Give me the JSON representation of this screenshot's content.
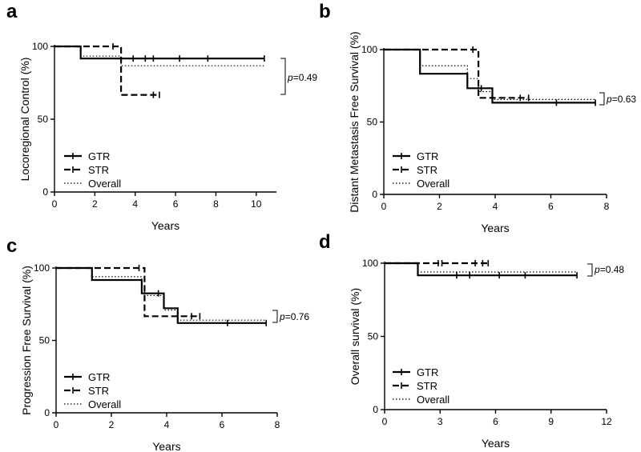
{
  "chart_data": [
    {
      "type": "line",
      "subtype": "kaplan-meier",
      "panel": "a",
      "title": "",
      "xlabel": "Years",
      "ylabel": "Locoregional Control (%)",
      "xlim": [
        0,
        11
      ],
      "ylim": [
        0,
        100
      ],
      "xticks": [
        0,
        2,
        4,
        6,
        8,
        10
      ],
      "yticks": [
        0,
        50,
        100
      ],
      "legend_position": "bottom-left",
      "p_value": "p=0.49",
      "series": [
        {
          "name": "GTR",
          "style": "solid",
          "steps": [
            [
              0,
              100
            ],
            [
              1.3,
              100
            ],
            [
              1.3,
              91.7
            ],
            [
              10.4,
              91.7
            ]
          ],
          "censored": [
            [
              3.9,
              91.7
            ],
            [
              4.5,
              91.7
            ],
            [
              4.9,
              91.7
            ],
            [
              6.2,
              91.7
            ],
            [
              7.6,
              91.7
            ],
            [
              10.4,
              91.7
            ]
          ]
        },
        {
          "name": "STR",
          "style": "dashed",
          "steps": [
            [
              0,
              100
            ],
            [
              3.3,
              100
            ],
            [
              3.3,
              66.7
            ],
            [
              5.2,
              66.7
            ]
          ],
          "censored": [
            [
              2.9,
              100
            ],
            [
              4.9,
              66.7
            ],
            [
              5.2,
              66.7
            ]
          ]
        },
        {
          "name": "Overall",
          "style": "dotted",
          "steps": [
            [
              0,
              100
            ],
            [
              1.3,
              100
            ],
            [
              1.3,
              93.3
            ],
            [
              3.3,
              93.3
            ],
            [
              3.3,
              86.7
            ],
            [
              10.4,
              86.7
            ]
          ],
          "censored": []
        }
      ]
    },
    {
      "type": "line",
      "subtype": "kaplan-meier",
      "panel": "b",
      "title": "",
      "xlabel": "Years",
      "ylabel": "Distant Metastasis Free Survival (%)",
      "xlim": [
        0,
        8
      ],
      "ylim": [
        0,
        100
      ],
      "xticks": [
        0,
        2,
        4,
        6,
        8
      ],
      "yticks": [
        0,
        50,
        100
      ],
      "legend_position": "bottom-left",
      "p_value": "p=0.63",
      "series": [
        {
          "name": "GTR",
          "style": "solid",
          "steps": [
            [
              0,
              100
            ],
            [
              1.3,
              100
            ],
            [
              1.3,
              83.3
            ],
            [
              3.0,
              83.3
            ],
            [
              3.0,
              73.3
            ],
            [
              3.9,
              73.3
            ],
            [
              3.9,
              63.3
            ],
            [
              7.6,
              63.3
            ]
          ],
          "censored": [
            [
              3.5,
              73.3
            ],
            [
              6.2,
              63.3
            ],
            [
              7.6,
              63.3
            ]
          ]
        },
        {
          "name": "STR",
          "style": "dashed",
          "steps": [
            [
              0,
              100
            ],
            [
              3.4,
              100
            ],
            [
              3.4,
              66.7
            ],
            [
              5.2,
              66.7
            ]
          ],
          "censored": [
            [
              3.2,
              100
            ],
            [
              4.9,
              66.7
            ],
            [
              5.2,
              66.7
            ]
          ]
        },
        {
          "name": "Overall",
          "style": "dotted",
          "steps": [
            [
              0,
              100
            ],
            [
              1.3,
              100
            ],
            [
              1.3,
              88.9
            ],
            [
              3.0,
              88.9
            ],
            [
              3.0,
              80
            ],
            [
              3.4,
              80
            ],
            [
              3.4,
              71
            ],
            [
              3.9,
              71
            ],
            [
              3.9,
              65.5
            ],
            [
              7.6,
              65.5
            ]
          ],
          "censored": []
        }
      ]
    },
    {
      "type": "line",
      "subtype": "kaplan-meier",
      "panel": "c",
      "title": "",
      "xlabel": "Years",
      "ylabel": "Progression Free Survival (%)",
      "xlim": [
        0,
        8
      ],
      "ylim": [
        0,
        100
      ],
      "xticks": [
        0,
        2,
        4,
        6,
        8
      ],
      "yticks": [
        0,
        50,
        100
      ],
      "legend_position": "bottom-left",
      "p_value": "p=0.76",
      "series": [
        {
          "name": "GTR",
          "style": "solid",
          "steps": [
            [
              0,
              100
            ],
            [
              1.3,
              100
            ],
            [
              1.3,
              91.7
            ],
            [
              3.1,
              91.7
            ],
            [
              3.1,
              82.5
            ],
            [
              3.9,
              82.5
            ],
            [
              3.9,
              72.2
            ],
            [
              4.4,
              72.2
            ],
            [
              4.4,
              62
            ],
            [
              7.6,
              62
            ]
          ],
          "censored": [
            [
              3.7,
              82.5
            ],
            [
              6.2,
              62
            ],
            [
              7.6,
              62
            ]
          ]
        },
        {
          "name": "STR",
          "style": "dashed",
          "steps": [
            [
              0,
              100
            ],
            [
              3.2,
              100
            ],
            [
              3.2,
              66.7
            ],
            [
              5.2,
              66.7
            ]
          ],
          "censored": [
            [
              3.0,
              100
            ],
            [
              4.9,
              66.7
            ],
            [
              5.2,
              66.7
            ]
          ]
        },
        {
          "name": "Overall",
          "style": "dotted",
          "steps": [
            [
              0,
              100
            ],
            [
              1.3,
              100
            ],
            [
              1.3,
              94
            ],
            [
              3.1,
              94
            ],
            [
              3.1,
              88
            ],
            [
              3.2,
              88
            ],
            [
              3.2,
              81
            ],
            [
              3.9,
              81
            ],
            [
              3.9,
              71
            ],
            [
              4.4,
              71
            ],
            [
              4.4,
              64
            ],
            [
              7.6,
              64
            ]
          ],
          "censored": []
        }
      ]
    },
    {
      "type": "line",
      "subtype": "kaplan-meier",
      "panel": "d",
      "title": "",
      "xlabel": "Years",
      "ylabel": "Overall survival (%)",
      "xlim": [
        0,
        12
      ],
      "ylim": [
        0,
        100
      ],
      "xticks": [
        0,
        3,
        6,
        9,
        12
      ],
      "yticks": [
        0,
        50,
        100
      ],
      "legend_position": "bottom-left",
      "p_value": "p=0.48",
      "series": [
        {
          "name": "GTR",
          "style": "solid",
          "steps": [
            [
              0,
              100
            ],
            [
              1.8,
              100
            ],
            [
              1.8,
              91.7
            ],
            [
              10.4,
              91.7
            ]
          ],
          "censored": [
            [
              3.9,
              91.7
            ],
            [
              4.6,
              91.7
            ],
            [
              6.2,
              91.7
            ],
            [
              7.6,
              91.7
            ],
            [
              10.4,
              91.7
            ]
          ]
        },
        {
          "name": "STR",
          "style": "dashed",
          "steps": [
            [
              0,
              100
            ],
            [
              5.6,
              100
            ]
          ],
          "censored": [
            [
              2.9,
              100
            ],
            [
              3.1,
              100
            ],
            [
              4.9,
              100
            ],
            [
              5.3,
              100
            ],
            [
              5.6,
              100
            ]
          ]
        },
        {
          "name": "Overall",
          "style": "dotted",
          "steps": [
            [
              0,
              100
            ],
            [
              1.8,
              100
            ],
            [
              1.8,
              94
            ],
            [
              10.4,
              94
            ]
          ],
          "censored": []
        }
      ]
    }
  ]
}
